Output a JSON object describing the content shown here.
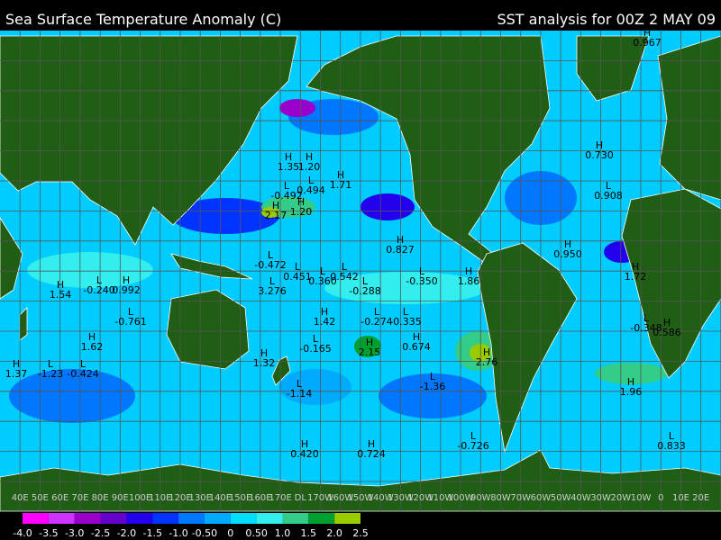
{
  "header": {
    "title": "Sea Surface Temperature Anomaly (C)",
    "subtitle": "SST analysis for 00Z 2 MAY 09"
  },
  "markers": [
    {
      "type": "H",
      "value": "1.35"
    },
    {
      "type": "H",
      "value": "1.20"
    },
    {
      "type": "L",
      "value": "0.494"
    },
    {
      "type": "L",
      "value": "-0.492"
    },
    {
      "type": "H",
      "value": "1.71"
    },
    {
      "type": "H",
      "value": "2.17"
    },
    {
      "type": "H",
      "value": "1.20"
    },
    {
      "type": "H",
      "value": "0.827"
    },
    {
      "type": "H",
      "value": "0.730"
    },
    {
      "type": "L",
      "value": "0.908"
    },
    {
      "type": "H",
      "value": "0.950"
    },
    {
      "type": "H",
      "value": "1.72"
    },
    {
      "type": "H",
      "value": "0.967"
    },
    {
      "type": "L",
      "value": "-0.240"
    },
    {
      "type": "H",
      "value": "0.992"
    },
    {
      "type": "H",
      "value": "1.54"
    },
    {
      "type": "L",
      "value": "-0.761"
    },
    {
      "type": "H",
      "value": "1.62"
    },
    {
      "type": "H",
      "value": "1.37"
    },
    {
      "type": "L",
      "value": "-1.23"
    },
    {
      "type": "L",
      "value": "-0.424"
    },
    {
      "type": "L",
      "value": "-0.472"
    },
    {
      "type": "L",
      "value": "0.451"
    },
    {
      "type": "L",
      "value": "0.360"
    },
    {
      "type": "L",
      "value": "0.542"
    },
    {
      "type": "L",
      "value": "-0.288"
    },
    {
      "type": "L",
      "value": "-0.350"
    },
    {
      "type": "H",
      "value": "1.86"
    },
    {
      "type": "L",
      "value": "3.276"
    },
    {
      "type": "H",
      "value": "1.42"
    },
    {
      "type": "L",
      "value": "-0.274"
    },
    {
      "type": "L",
      "value": "-0.335"
    },
    {
      "type": "L",
      "value": "-0.165"
    },
    {
      "type": "H",
      "value": "2.15"
    },
    {
      "type": "H",
      "value": "0.674"
    },
    {
      "type": "H",
      "value": "2.76"
    },
    {
      "type": "H",
      "value": "1.32"
    },
    {
      "type": "L",
      "value": "-1.14"
    },
    {
      "type": "L",
      "value": "-1.36"
    },
    {
      "type": "L",
      "value": "-0.348"
    },
    {
      "type": "H",
      "value": "0.586"
    },
    {
      "type": "H",
      "value": "1.96"
    },
    {
      "type": "H",
      "value": "0.420"
    },
    {
      "type": "H",
      "value": "0.724"
    },
    {
      "type": "L",
      "value": "-0.726"
    },
    {
      "type": "L",
      "value": "0.833"
    }
  ],
  "longitudes": [
    "40E",
    "50E",
    "60E",
    "70E",
    "80E",
    "90E",
    "100E",
    "110E",
    "120E",
    "130E",
    "140E",
    "150E",
    "160E",
    "170E",
    "DL",
    "170W",
    "160W",
    "150W",
    "140W",
    "130W",
    "120W",
    "110W",
    "100W",
    "90W",
    "80W",
    "70W",
    "60W",
    "50W",
    "40W",
    "30W",
    "20W",
    "10W",
    "0",
    "10E",
    "20E"
  ],
  "legend": {
    "colors": [
      "#ff00ff",
      "#cc33ff",
      "#9900cc",
      "#6600cc",
      "#2200ee",
      "#0033ff",
      "#0077ff",
      "#00aaff",
      "#00ddff",
      "#33eeee",
      "#33cc88",
      "#00a030",
      "#99cc00"
    ],
    "labels": [
      "-4.0",
      "-3.5",
      "-3.0",
      "-2.5",
      "-2.0",
      "-1.5",
      "-1.0",
      "-0.50",
      "0",
      "0.50",
      "1.0",
      "1.5",
      "2.0",
      "2.5"
    ]
  }
}
